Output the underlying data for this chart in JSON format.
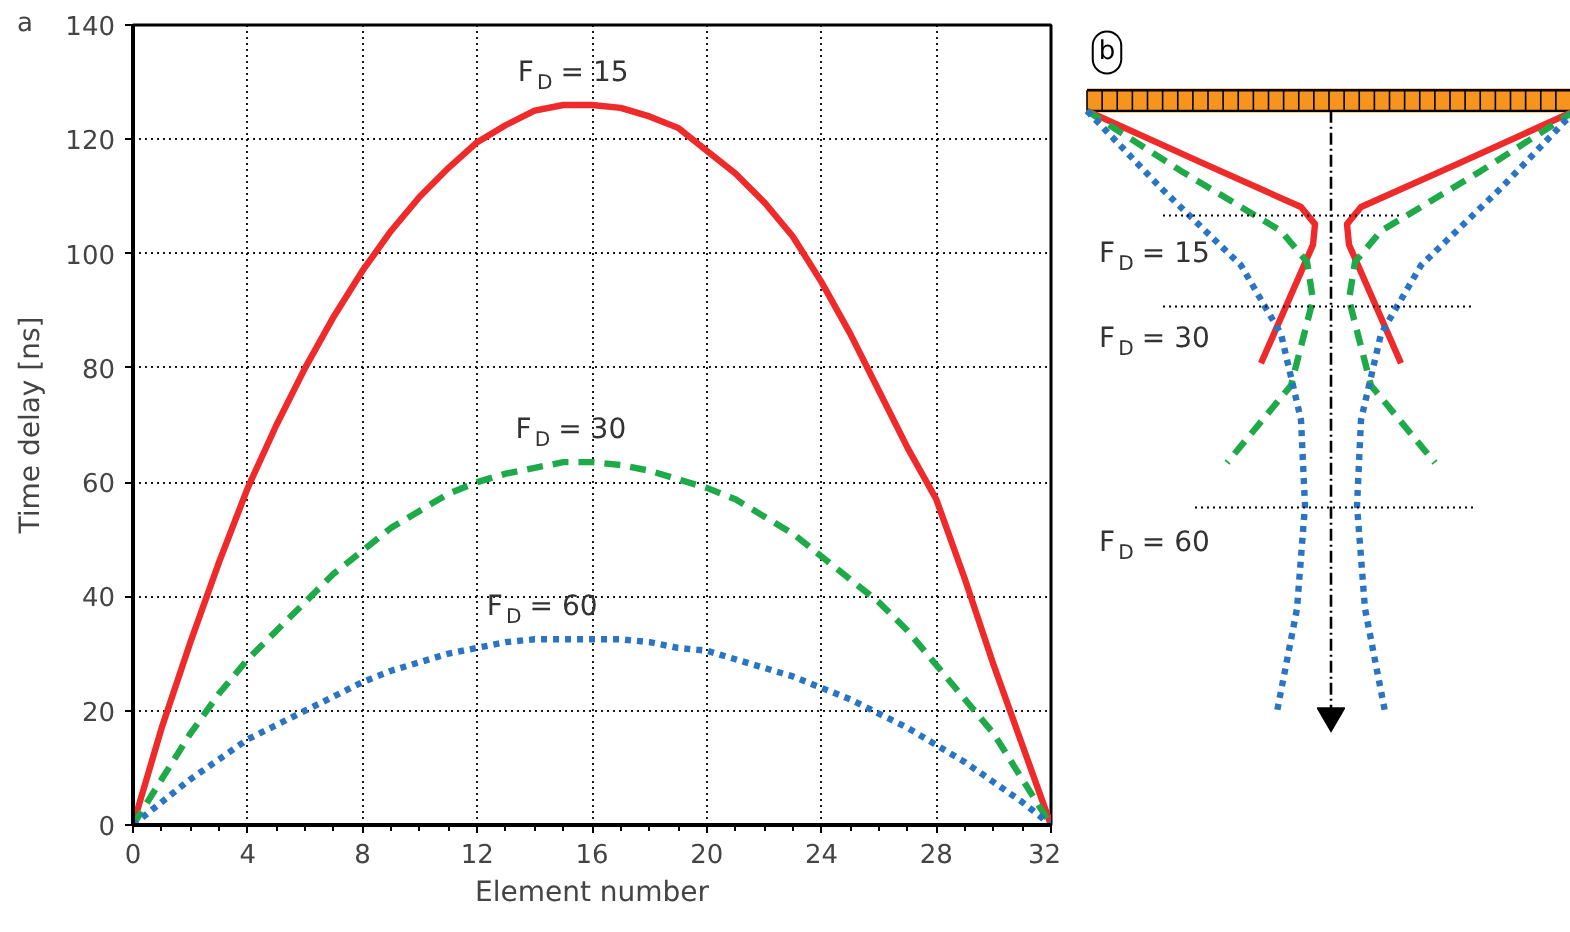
{
  "chart_data": [
    {
      "type": "line",
      "xlabel": "Element number",
      "ylabel": "Time delay [ns]",
      "x": [
        0,
        1,
        2,
        3,
        4,
        5,
        6,
        7,
        8,
        9,
        10,
        11,
        12,
        13,
        14,
        15,
        16,
        17,
        18,
        19,
        20,
        21,
        22,
        23,
        24,
        25,
        26,
        27,
        28,
        29,
        30,
        31,
        32
      ],
      "series": [
        {
          "name": "F$_{D}$ = 15",
          "color": "#ee2a2a",
          "line_style": "solid",
          "values": [
            0,
            17,
            32,
            46,
            59,
            70,
            80,
            89,
            97,
            104,
            110,
            115,
            119.5,
            122.5,
            125,
            126,
            126,
            125.5,
            124,
            122,
            118,
            114,
            109,
            103,
            95,
            86,
            76,
            66,
            57,
            43,
            28,
            14,
            0
          ]
        },
        {
          "name": "F$_{D}$ = 30",
          "color": "#1faa4a",
          "line_style": "dashed",
          "values": [
            0,
            8,
            16,
            23,
            29,
            34,
            39,
            44,
            48,
            52,
            55,
            58,
            60,
            61.5,
            62.5,
            63.5,
            63.5,
            63,
            62,
            60.5,
            59,
            57,
            54,
            51,
            47,
            43,
            39,
            34,
            28,
            22,
            16,
            8,
            0
          ]
        },
        {
          "name": "F$_{D}$ = 60",
          "color": "#2a74c4",
          "line_style": "dotted",
          "values": [
            0,
            4,
            8,
            11.5,
            15,
            17.5,
            20,
            22.5,
            25,
            27,
            28.5,
            30,
            31,
            32,
            32.5,
            32.5,
            32.5,
            32.5,
            32,
            31,
            30.5,
            29,
            27.5,
            26,
            24,
            22,
            19.5,
            17,
            14,
            11,
            7.5,
            4,
            0
          ]
        }
      ],
      "xlim": [
        0,
        32
      ],
      "ylim": [
        0,
        140
      ],
      "xticks": [
        0,
        4,
        8,
        12,
        16,
        20,
        24,
        28,
        32
      ],
      "yticks": [
        0,
        20,
        40,
        60,
        80,
        100,
        120,
        140
      ],
      "grid": true,
      "annotations": [
        "a"
      ]
    },
    {
      "type": "other",
      "annotations": [
        "b",
        "F$_{D}$ = 15",
        "F$_{D}$ = 30",
        "F$_{D}$ = 60"
      ]
    }
  ]
}
